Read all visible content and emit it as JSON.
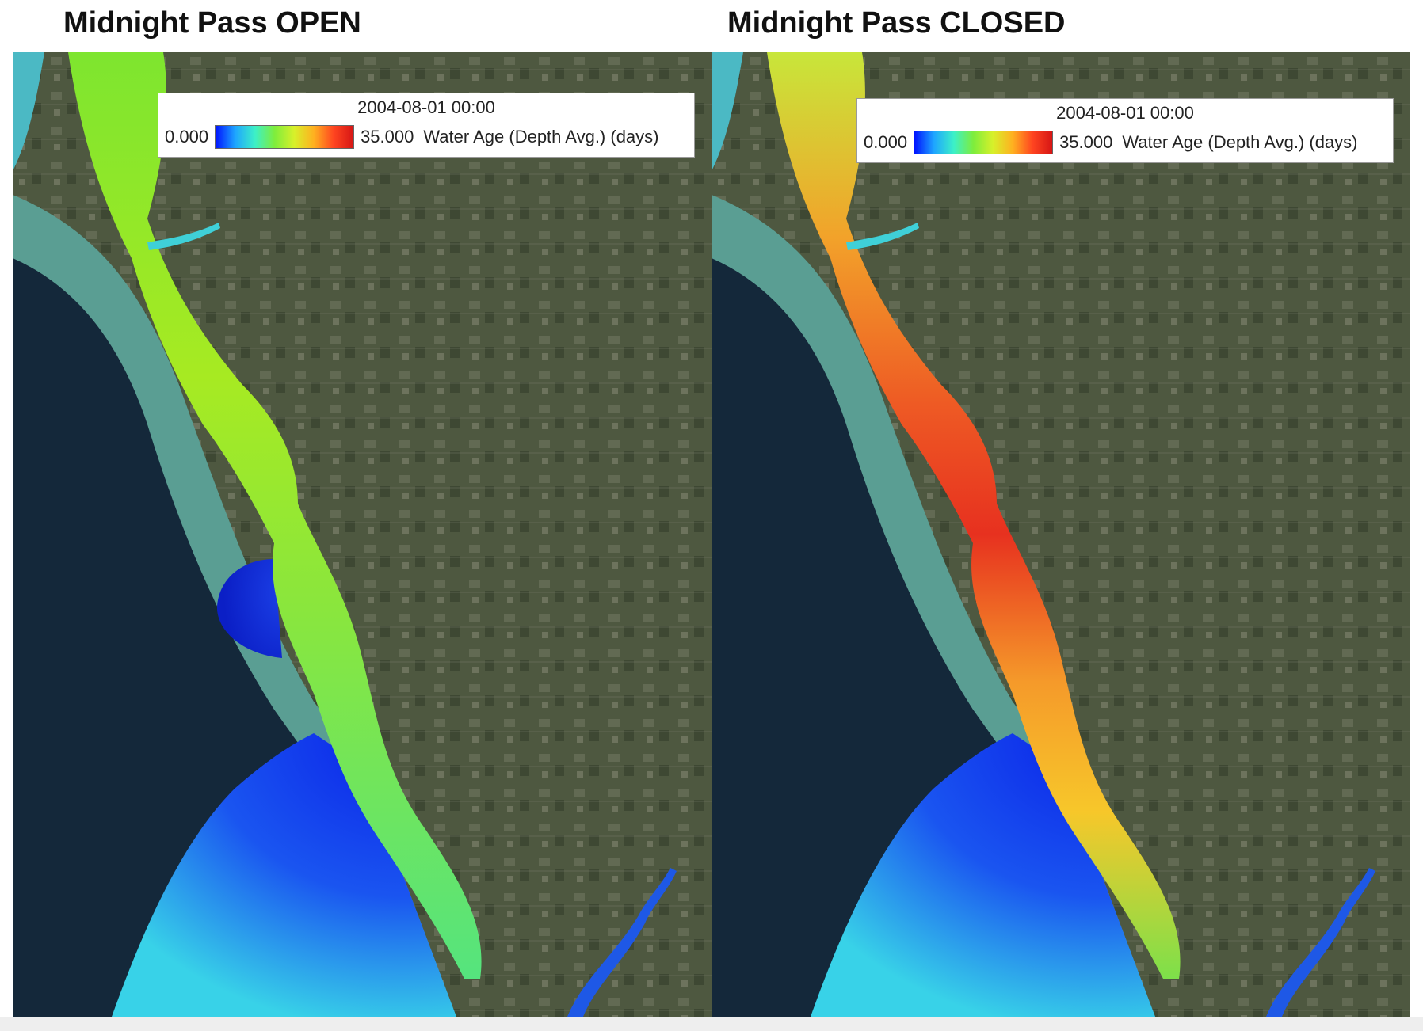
{
  "panels": {
    "open": {
      "title": "Midnight Pass OPEN",
      "legend": {
        "timestamp": "2004-08-01 00:00",
        "min_label": "0.000",
        "max_label": "35.000",
        "variable_label": "Water Age (Depth Avg.) (days)"
      },
      "water_age_colors": {
        "north_bay": "#7ee52f",
        "mid_bay": "#9ee81f",
        "south_bay": "#63e66a",
        "inlet_plume": "#1e46e6",
        "gulf_plume": "#1f49ef"
      }
    },
    "closed": {
      "title": "Midnight Pass CLOSED",
      "legend": {
        "timestamp": "2004-08-01 00:00",
        "min_label": "0.000",
        "max_label": "35.000",
        "variable_label": "Water Age (Depth Avg.) (days)"
      },
      "water_age_colors": {
        "north_bay": "#ec8a2c",
        "mid_bay": "#e7311f",
        "south_bay": "#f7bd2a",
        "inlet_plume": "#e7311f",
        "gulf_plume": "#1f49ef"
      }
    }
  },
  "colorbar_stops": [
    "#0012ff",
    "#1ea5ff",
    "#3cf0c8",
    "#7eed3c",
    "#d8f02a",
    "#ffb020",
    "#ff4520",
    "#d61515"
  ],
  "basemap_colors": {
    "deep_gulf": "#14283a",
    "shallow_shelf": "#5a9e93",
    "land": "#4e5840"
  }
}
